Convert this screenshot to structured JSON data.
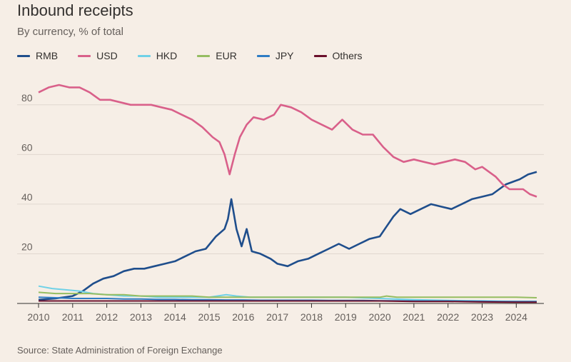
{
  "chart_data": {
    "type": "line",
    "title": "Inbound receipts",
    "subtitle": "By currency, % of total",
    "source": "Source: State Administration of Foreign Exchange",
    "xlabel": "",
    "ylabel": "",
    "ylim": [
      0,
      90
    ],
    "xlim": [
      2010.0,
      2024.6
    ],
    "yticks": [
      20,
      40,
      60,
      80
    ],
    "xticks": [
      "2010",
      "2011",
      "2012",
      "2013",
      "2014",
      "2015",
      "2016",
      "2017",
      "2018",
      "2019",
      "2020",
      "2021",
      "2022",
      "2023",
      "2024"
    ],
    "grid": "horizontal",
    "legend_position": "top-left",
    "series": [
      {
        "name": "RMB",
        "color": "#1f4e8c",
        "points": [
          [
            2010.0,
            1.5
          ],
          [
            2010.5,
            2
          ],
          [
            2011.0,
            3
          ],
          [
            2011.3,
            5
          ],
          [
            2011.6,
            8
          ],
          [
            2011.9,
            10
          ],
          [
            2012.2,
            11
          ],
          [
            2012.5,
            13
          ],
          [
            2012.8,
            14
          ],
          [
            2013.1,
            14
          ],
          [
            2013.4,
            15
          ],
          [
            2013.7,
            16
          ],
          [
            2014.0,
            17
          ],
          [
            2014.3,
            19
          ],
          [
            2014.6,
            21
          ],
          [
            2014.9,
            22
          ],
          [
            2015.2,
            27
          ],
          [
            2015.45,
            30
          ],
          [
            2015.55,
            34
          ],
          [
            2015.65,
            42
          ],
          [
            2015.8,
            30
          ],
          [
            2015.95,
            23
          ],
          [
            2016.1,
            30
          ],
          [
            2016.25,
            21
          ],
          [
            2016.5,
            20
          ],
          [
            2016.8,
            18
          ],
          [
            2017.0,
            16
          ],
          [
            2017.3,
            15
          ],
          [
            2017.6,
            17
          ],
          [
            2017.9,
            18
          ],
          [
            2018.2,
            20
          ],
          [
            2018.5,
            22
          ],
          [
            2018.8,
            24
          ],
          [
            2019.1,
            22
          ],
          [
            2019.4,
            24
          ],
          [
            2019.7,
            26
          ],
          [
            2020.0,
            27
          ],
          [
            2020.2,
            31
          ],
          [
            2020.4,
            35
          ],
          [
            2020.6,
            38
          ],
          [
            2020.9,
            36
          ],
          [
            2021.2,
            38
          ],
          [
            2021.5,
            40
          ],
          [
            2021.8,
            39
          ],
          [
            2022.1,
            38
          ],
          [
            2022.4,
            40
          ],
          [
            2022.7,
            42
          ],
          [
            2023.0,
            43
          ],
          [
            2023.3,
            44
          ],
          [
            2023.5,
            46
          ],
          [
            2023.7,
            48
          ],
          [
            2023.9,
            49
          ],
          [
            2024.1,
            50
          ],
          [
            2024.35,
            52
          ],
          [
            2024.6,
            53
          ]
        ]
      },
      {
        "name": "USD",
        "color": "#d9608a",
        "points": [
          [
            2010.0,
            85
          ],
          [
            2010.3,
            87
          ],
          [
            2010.6,
            88
          ],
          [
            2010.9,
            87
          ],
          [
            2011.2,
            87
          ],
          [
            2011.5,
            85
          ],
          [
            2011.8,
            82
          ],
          [
            2012.1,
            82
          ],
          [
            2012.4,
            81
          ],
          [
            2012.7,
            80
          ],
          [
            2013.0,
            80
          ],
          [
            2013.3,
            80
          ],
          [
            2013.6,
            79
          ],
          [
            2013.9,
            78
          ],
          [
            2014.2,
            76
          ],
          [
            2014.5,
            74
          ],
          [
            2014.8,
            71
          ],
          [
            2015.1,
            67
          ],
          [
            2015.3,
            65
          ],
          [
            2015.45,
            60
          ],
          [
            2015.6,
            52
          ],
          [
            2015.75,
            60
          ],
          [
            2015.9,
            67
          ],
          [
            2016.1,
            72
          ],
          [
            2016.3,
            75
          ],
          [
            2016.6,
            74
          ],
          [
            2016.9,
            76
          ],
          [
            2017.1,
            80
          ],
          [
            2017.4,
            79
          ],
          [
            2017.7,
            77
          ],
          [
            2018.0,
            74
          ],
          [
            2018.3,
            72
          ],
          [
            2018.6,
            70
          ],
          [
            2018.9,
            74
          ],
          [
            2019.2,
            70
          ],
          [
            2019.5,
            68
          ],
          [
            2019.8,
            68
          ],
          [
            2020.1,
            63
          ],
          [
            2020.4,
            59
          ],
          [
            2020.7,
            57
          ],
          [
            2021.0,
            58
          ],
          [
            2021.3,
            57
          ],
          [
            2021.6,
            56
          ],
          [
            2021.9,
            57
          ],
          [
            2022.2,
            58
          ],
          [
            2022.5,
            57
          ],
          [
            2022.8,
            54
          ],
          [
            2023.0,
            55
          ],
          [
            2023.2,
            53
          ],
          [
            2023.4,
            51
          ],
          [
            2023.6,
            48
          ],
          [
            2023.8,
            46
          ],
          [
            2024.0,
            46
          ],
          [
            2024.2,
            46
          ],
          [
            2024.4,
            44
          ],
          [
            2024.6,
            43
          ]
        ]
      },
      {
        "name": "HKD",
        "color": "#6fd1e7",
        "points": [
          [
            2010.0,
            7
          ],
          [
            2010.4,
            6
          ],
          [
            2010.8,
            5.5
          ],
          [
            2011.2,
            5
          ],
          [
            2011.6,
            4
          ],
          [
            2012.0,
            3.5
          ],
          [
            2012.5,
            3
          ],
          [
            2013.0,
            3
          ],
          [
            2013.5,
            2.5
          ],
          [
            2014.0,
            2.5
          ],
          [
            2014.5,
            2.5
          ],
          [
            2015.0,
            2.5
          ],
          [
            2015.5,
            3.5
          ],
          [
            2015.8,
            3
          ],
          [
            2016.2,
            2.5
          ],
          [
            2017.0,
            2.5
          ],
          [
            2018.0,
            2.5
          ],
          [
            2019.0,
            2.5
          ],
          [
            2020.0,
            2
          ],
          [
            2021.0,
            1.5
          ],
          [
            2022.0,
            1.2
          ],
          [
            2023.0,
            1
          ],
          [
            2024.0,
            0.8
          ],
          [
            2024.6,
            0.8
          ]
        ]
      },
      {
        "name": "EUR",
        "color": "#95bd61",
        "points": [
          [
            2010.0,
            4.5
          ],
          [
            2010.5,
            4
          ],
          [
            2011.0,
            4
          ],
          [
            2011.5,
            4
          ],
          [
            2012.0,
            3.5
          ],
          [
            2012.5,
            3.5
          ],
          [
            2013.0,
            3
          ],
          [
            2013.5,
            3
          ],
          [
            2014.0,
            3
          ],
          [
            2014.5,
            3
          ],
          [
            2015.0,
            2.5
          ],
          [
            2015.5,
            2.5
          ],
          [
            2016.0,
            2.5
          ],
          [
            2016.5,
            2.5
          ],
          [
            2017.0,
            2.5
          ],
          [
            2017.5,
            2.5
          ],
          [
            2018.0,
            2.5
          ],
          [
            2018.5,
            2.5
          ],
          [
            2019.0,
            2.5
          ],
          [
            2019.5,
            2.5
          ],
          [
            2020.0,
            2.5
          ],
          [
            2020.2,
            3
          ],
          [
            2020.5,
            2.5
          ],
          [
            2021.0,
            2.5
          ],
          [
            2021.5,
            2.5
          ],
          [
            2022.0,
            2.5
          ],
          [
            2022.5,
            2.5
          ],
          [
            2023.0,
            2.5
          ],
          [
            2023.5,
            2.5
          ],
          [
            2024.0,
            2.5
          ],
          [
            2024.6,
            2.3
          ]
        ]
      },
      {
        "name": "JPY",
        "color": "#2e7cc4",
        "points": [
          [
            2010.0,
            2.5
          ],
          [
            2010.5,
            2.3
          ],
          [
            2011.0,
            2
          ],
          [
            2011.5,
            2
          ],
          [
            2012.0,
            2
          ],
          [
            2012.5,
            1.8
          ],
          [
            2013.0,
            1.8
          ],
          [
            2013.5,
            1.6
          ],
          [
            2014.0,
            1.6
          ],
          [
            2014.5,
            1.5
          ],
          [
            2015.0,
            1.5
          ],
          [
            2015.5,
            1.4
          ],
          [
            2016.0,
            1.4
          ],
          [
            2016.5,
            1.3
          ],
          [
            2017.0,
            1.3
          ],
          [
            2017.5,
            1.3
          ],
          [
            2018.0,
            1.3
          ],
          [
            2018.5,
            1.2
          ],
          [
            2019.0,
            1.2
          ],
          [
            2019.5,
            1.2
          ],
          [
            2020.0,
            1.1
          ],
          [
            2020.5,
            1.1
          ],
          [
            2021.0,
            1
          ],
          [
            2021.5,
            1
          ],
          [
            2022.0,
            1
          ],
          [
            2022.5,
            0.9
          ],
          [
            2023.0,
            0.9
          ],
          [
            2023.5,
            0.8
          ],
          [
            2024.0,
            0.8
          ],
          [
            2024.6,
            0.8
          ]
        ]
      },
      {
        "name": "Others",
        "color": "#6a0f2b",
        "points": [
          [
            2010.0,
            1
          ],
          [
            2011.0,
            1
          ],
          [
            2012.0,
            1
          ],
          [
            2013.0,
            1
          ],
          [
            2014.0,
            1
          ],
          [
            2015.0,
            1
          ],
          [
            2016.0,
            1
          ],
          [
            2017.0,
            1
          ],
          [
            2018.0,
            1
          ],
          [
            2019.0,
            1
          ],
          [
            2020.0,
            1
          ],
          [
            2021.0,
            0.8
          ],
          [
            2022.0,
            0.8
          ],
          [
            2023.0,
            0.6
          ],
          [
            2024.0,
            0.5
          ],
          [
            2024.6,
            0.5
          ]
        ]
      }
    ]
  }
}
